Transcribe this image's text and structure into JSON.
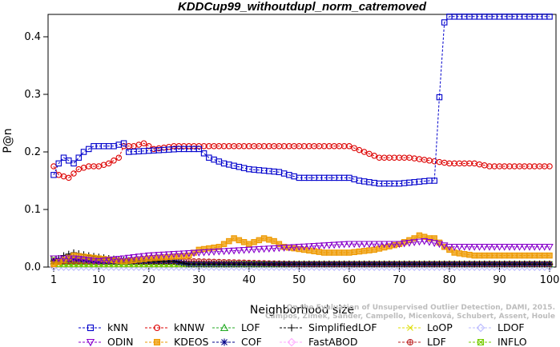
{
  "chart_data": {
    "type": "line",
    "title": "KDDCup99_withoutdupl_norm_catremoved",
    "xlabel": "Neighborhood size",
    "ylabel": "P@n",
    "xlim": [
      1,
      100
    ],
    "ylim": [
      0,
      0.44
    ],
    "x_ticks": [
      1,
      10,
      20,
      30,
      40,
      50,
      60,
      70,
      80,
      90,
      100
    ],
    "y_ticks": [
      0.0,
      0.1,
      0.2,
      0.3,
      0.4
    ],
    "credit": [
      "Campos, Zimek, Sander, Campello, Micenková, Schubert, Assent, Houle",
      "On the Evaluation of Unsupervised Outlier Detection, DAMI, 2015."
    ],
    "legend_position": "bottom",
    "series": [
      {
        "name": "kNN",
        "color": "#0000cc",
        "marker": "square",
        "keypoints": [
          [
            1,
            0.16
          ],
          [
            2,
            0.18
          ],
          [
            3,
            0.19
          ],
          [
            5,
            0.18
          ],
          [
            6,
            0.19
          ],
          [
            7,
            0.2
          ],
          [
            9,
            0.21
          ],
          [
            11,
            0.21
          ],
          [
            13,
            0.21
          ],
          [
            15,
            0.215
          ],
          [
            16,
            0.2
          ],
          [
            26,
            0.205
          ],
          [
            30,
            0.205
          ],
          [
            32,
            0.19
          ],
          [
            35,
            0.18
          ],
          [
            40,
            0.17
          ],
          [
            46,
            0.165
          ],
          [
            50,
            0.155
          ],
          [
            55,
            0.155
          ],
          [
            60,
            0.155
          ],
          [
            62,
            0.15
          ],
          [
            66,
            0.145
          ],
          [
            70,
            0.145
          ],
          [
            76,
            0.15
          ],
          [
            77,
            0.15
          ],
          [
            78,
            0.295
          ],
          [
            79,
            0.425
          ],
          [
            80,
            0.435
          ],
          [
            100,
            0.435
          ]
        ]
      },
      {
        "name": "kNNW",
        "color": "#dd0000",
        "marker": "circle",
        "keypoints": [
          [
            1,
            0.175
          ],
          [
            2,
            0.16
          ],
          [
            4,
            0.155
          ],
          [
            6,
            0.17
          ],
          [
            8,
            0.175
          ],
          [
            10,
            0.175
          ],
          [
            12,
            0.18
          ],
          [
            14,
            0.19
          ],
          [
            15,
            0.21
          ],
          [
            17,
            0.21
          ],
          [
            19,
            0.215
          ],
          [
            21,
            0.205
          ],
          [
            25,
            0.21
          ],
          [
            30,
            0.21
          ],
          [
            40,
            0.21
          ],
          [
            50,
            0.21
          ],
          [
            60,
            0.21
          ],
          [
            63,
            0.2
          ],
          [
            66,
            0.19
          ],
          [
            72,
            0.19
          ],
          [
            76,
            0.185
          ],
          [
            80,
            0.18
          ],
          [
            85,
            0.18
          ],
          [
            88,
            0.175
          ],
          [
            100,
            0.175
          ]
        ]
      },
      {
        "name": "LOF",
        "color": "#22aa22",
        "marker": "triangle-up",
        "keypoints": [
          [
            1,
            0.01
          ],
          [
            2,
            0.005
          ],
          [
            100,
            0.005
          ]
        ]
      },
      {
        "name": "SimplifiedLOF",
        "color": "#000000",
        "marker": "plus",
        "keypoints": [
          [
            1,
            0.01
          ],
          [
            3,
            0.02
          ],
          [
            5,
            0.025
          ],
          [
            8,
            0.02
          ],
          [
            12,
            0.015
          ],
          [
            18,
            0.01
          ],
          [
            25,
            0.01
          ],
          [
            28,
            0.005
          ],
          [
            100,
            0.005
          ]
        ]
      },
      {
        "name": "LoOP",
        "color": "#dddd00",
        "marker": "x",
        "keypoints": [
          [
            1,
            0.005
          ],
          [
            100,
            0.005
          ]
        ]
      },
      {
        "name": "LDOF",
        "color": "#bbbbff",
        "marker": "diamond",
        "keypoints": [
          [
            1,
            0.0
          ],
          [
            100,
            0.0
          ]
        ]
      },
      {
        "name": "ODIN",
        "color": "#8800cc",
        "marker": "triangle-down",
        "keypoints": [
          [
            1,
            0.015
          ],
          [
            5,
            0.015
          ],
          [
            10,
            0.01
          ],
          [
            15,
            0.015
          ],
          [
            20,
            0.02
          ],
          [
            30,
            0.025
          ],
          [
            40,
            0.03
          ],
          [
            50,
            0.035
          ],
          [
            60,
            0.04
          ],
          [
            70,
            0.04
          ],
          [
            75,
            0.045
          ],
          [
            78,
            0.04
          ],
          [
            80,
            0.035
          ],
          [
            100,
            0.035
          ]
        ]
      },
      {
        "name": "KDEOS",
        "color": "#ee9900",
        "marker": "square-filled",
        "keypoints": [
          [
            1,
            0.005
          ],
          [
            5,
            0.02
          ],
          [
            10,
            0.015
          ],
          [
            15,
            0.01
          ],
          [
            20,
            0.015
          ],
          [
            28,
            0.02
          ],
          [
            30,
            0.03
          ],
          [
            34,
            0.035
          ],
          [
            36,
            0.045
          ],
          [
            37,
            0.05
          ],
          [
            40,
            0.04
          ],
          [
            43,
            0.05
          ],
          [
            45,
            0.045
          ],
          [
            47,
            0.035
          ],
          [
            55,
            0.025
          ],
          [
            60,
            0.025
          ],
          [
            65,
            0.03
          ],
          [
            70,
            0.04
          ],
          [
            73,
            0.05
          ],
          [
            74,
            0.055
          ],
          [
            76,
            0.05
          ],
          [
            77,
            0.05
          ],
          [
            79,
            0.035
          ],
          [
            81,
            0.025
          ],
          [
            85,
            0.02
          ],
          [
            100,
            0.02
          ]
        ]
      },
      {
        "name": "COF",
        "color": "#000088",
        "marker": "asterisk",
        "keypoints": [
          [
            1,
            0.01
          ],
          [
            5,
            0.015
          ],
          [
            10,
            0.01
          ],
          [
            20,
            0.01
          ],
          [
            25,
            0.01
          ],
          [
            28,
            0.005
          ],
          [
            100,
            0.005
          ]
        ]
      },
      {
        "name": "FastABOD",
        "color": "#ffaaff",
        "marker": "diamond",
        "keypoints": [
          [
            1,
            0.005
          ],
          [
            100,
            0.005
          ]
        ]
      },
      {
        "name": "LDF",
        "color": "#bb2222",
        "marker": "circle-plus",
        "keypoints": [
          [
            1,
            0.01
          ],
          [
            10,
            0.01
          ],
          [
            30,
            0.01
          ],
          [
            50,
            0.005
          ],
          [
            100,
            0.005
          ]
        ]
      },
      {
        "name": "INFLO",
        "color": "#77cc00",
        "marker": "square-x",
        "keypoints": [
          [
            1,
            0.015
          ],
          [
            2,
            0.005
          ],
          [
            100,
            0.005
          ]
        ]
      }
    ]
  }
}
